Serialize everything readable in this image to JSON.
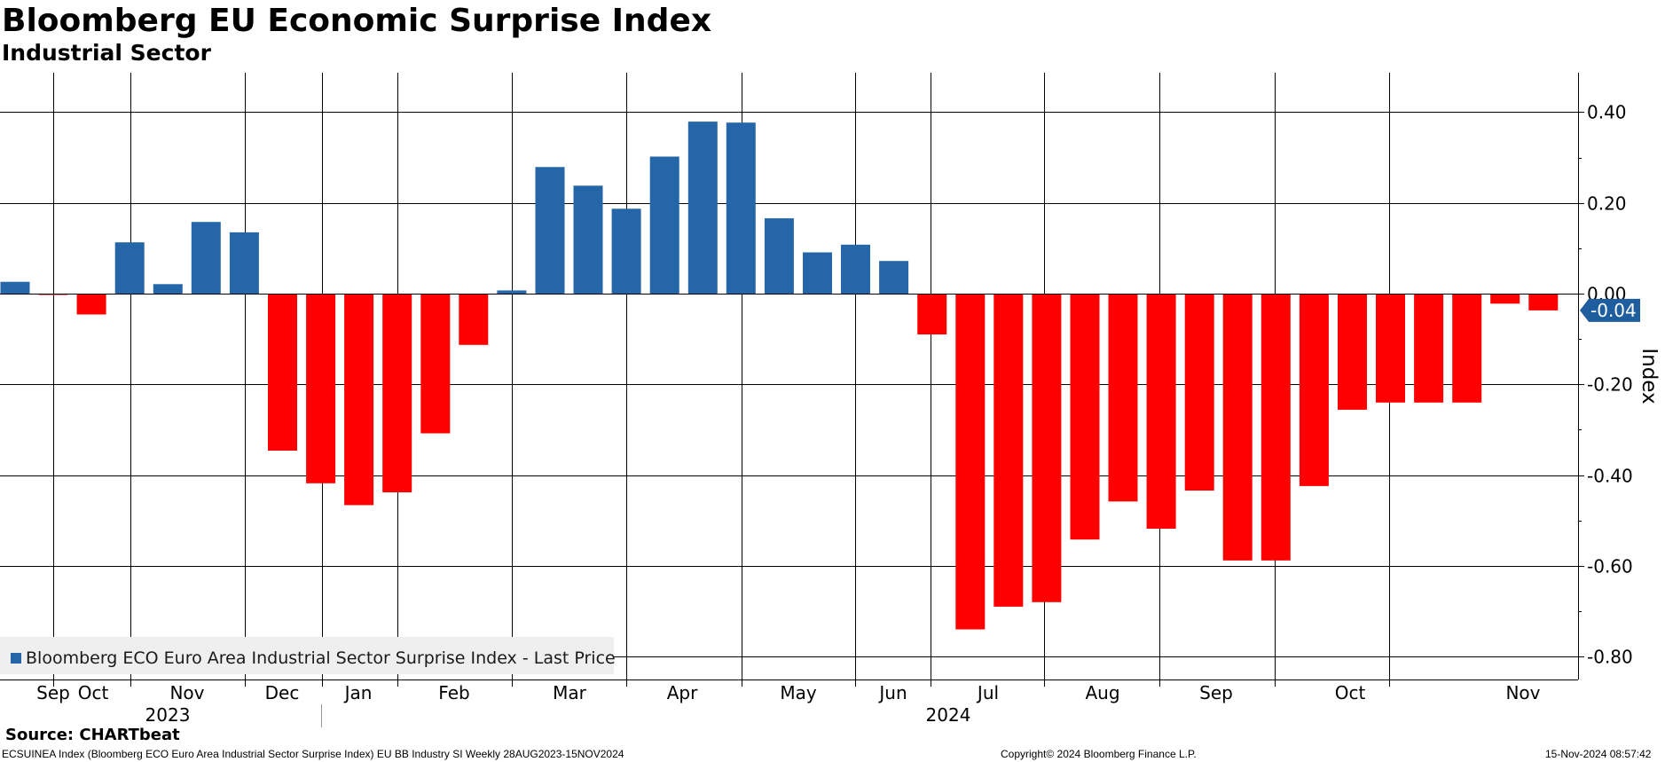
{
  "chart_data": {
    "type": "bar",
    "title": "Bloomberg EU Economic Surprise Index",
    "subtitle": "Industrial Sector",
    "ylabel": "Index",
    "ylim": [
      -0.85,
      0.49
    ],
    "yticks": [
      0.4,
      0.2,
      0.0,
      -0.2,
      -0.4,
      -0.6,
      -0.8
    ],
    "ytick_labels": [
      "0.40",
      "0.20",
      "0.00",
      "-0.20",
      "-0.40",
      "-0.60",
      "-0.80"
    ],
    "last_value_label": "-0.04",
    "positive_color": "#2566a8",
    "negative_color": "#ff0000",
    "legend": {
      "label": "Bloomberg ECO Euro Area Industrial Sector Surprise Index - Last Price",
      "position": "bottom-left"
    },
    "x_month_labels": [
      "Sep",
      "Oct",
      "Nov",
      "Dec",
      "Jan",
      "Feb",
      "Mar",
      "Apr",
      "May",
      "Jun",
      "Jul",
      "Aug",
      "Sep",
      "Oct",
      "Nov"
    ],
    "x_year_labels": [
      "2023",
      "2024"
    ],
    "series": [
      {
        "values": [
          0.026,
          -0.003,
          -0.046,
          0.113,
          0.021,
          0.158,
          0.135,
          -0.346,
          -0.418,
          -0.466,
          -0.438,
          -0.308,
          -0.113,
          0.007,
          0.279,
          0.238,
          0.187,
          0.302,
          0.379,
          0.377,
          0.166,
          0.091,
          0.108,
          0.072,
          -0.09,
          -0.74,
          -0.69,
          -0.68,
          -0.542,
          -0.458,
          -0.518,
          -0.434,
          -0.588,
          -0.588,
          -0.424,
          -0.256,
          -0.24,
          -0.24,
          -0.24,
          -0.022,
          -0.037
        ]
      }
    ]
  },
  "footer": {
    "source": "Source: CHARTbeat",
    "index_description": "ECSUINEA Index (Bloomberg ECO Euro Area Industrial Sector Surprise Index) EU BB Industry SI  Weekly 28AUG2023-15NOV2024",
    "copyright": "Copyright© 2024 Bloomberg Finance L.P.",
    "timestamp": "15-Nov-2024 08:57:42"
  }
}
